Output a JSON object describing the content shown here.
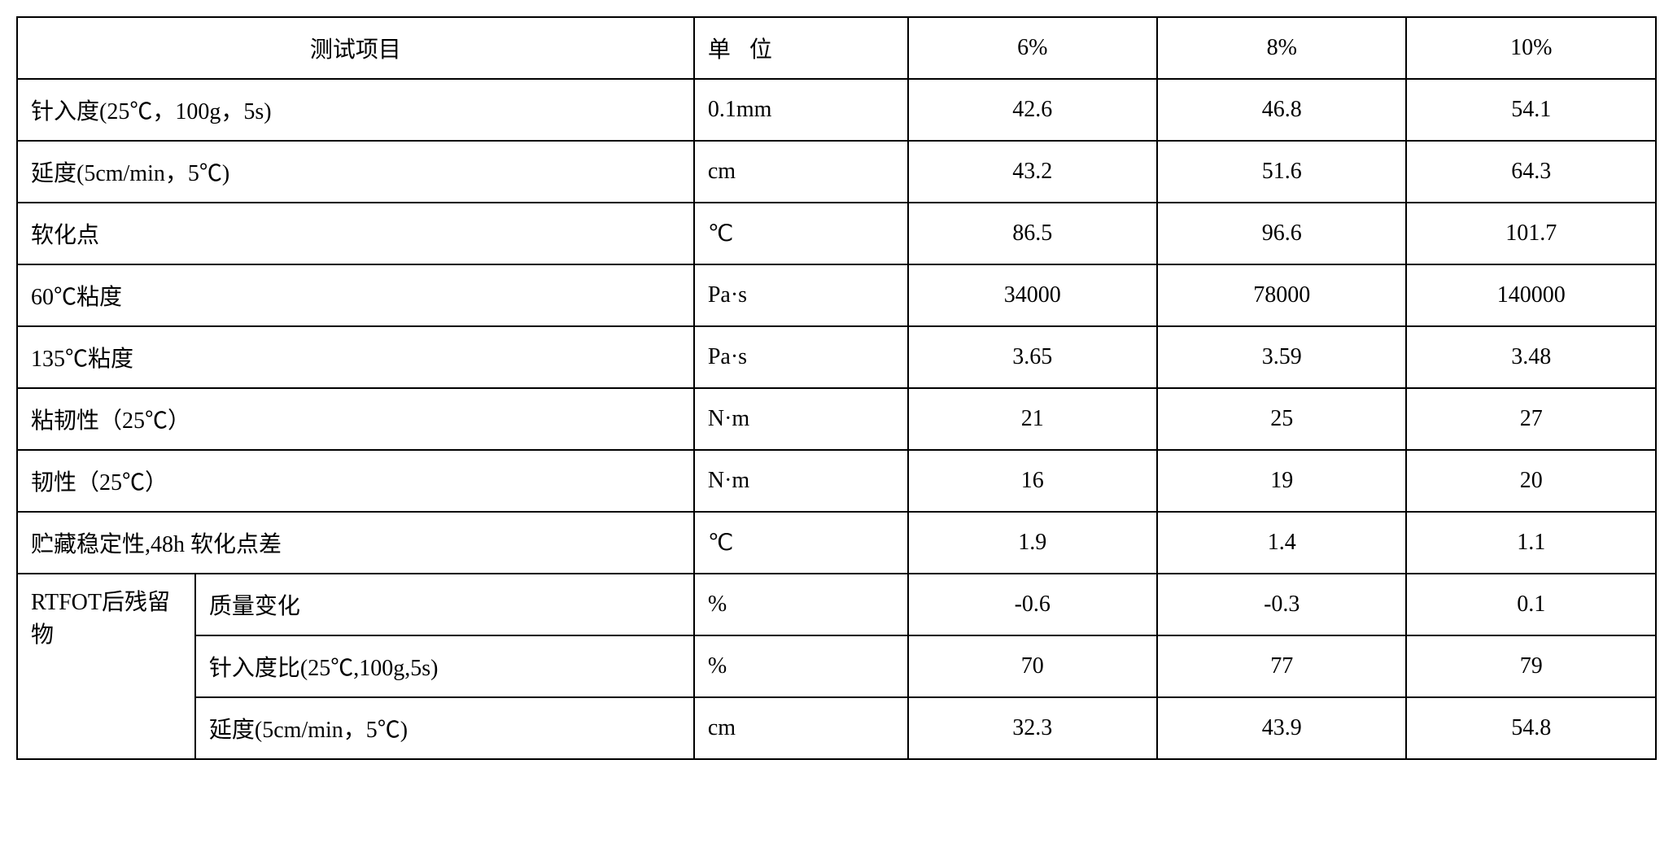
{
  "table": {
    "type": "table",
    "background_color": "#ffffff",
    "border_color": "#000000",
    "text_color": "#000000",
    "font_family": "SimSun",
    "cell_fontsize": 28,
    "border_width": 2,
    "columns": [
      "测试项目",
      "单 位",
      "6%",
      "8%",
      "10%"
    ],
    "header": {
      "test_item": "测试项目",
      "unit": "单 位",
      "pct6": "6%",
      "pct8": "8%",
      "pct10": "10%"
    },
    "rows": [
      {
        "label": "针入度(25℃，100g，5s)",
        "unit": "0.1mm",
        "v6": "42.6",
        "v8": "46.8",
        "v10": "54.1"
      },
      {
        "label": "延度(5cm/min，5℃)",
        "unit": "cm",
        "v6": "43.2",
        "v8": "51.6",
        "v10": "64.3"
      },
      {
        "label": "软化点",
        "unit": "℃",
        "v6": "86.5",
        "v8": "96.6",
        "v10": "101.7"
      },
      {
        "label": "60℃粘度",
        "unit": "Pa·s",
        "v6": "34000",
        "v8": "78000",
        "v10": "140000"
      },
      {
        "label": "135℃粘度",
        "unit": "Pa·s",
        "v6": "3.65",
        "v8": "3.59",
        "v10": "3.48"
      },
      {
        "label": "粘韧性（25℃）",
        "unit": "N·m",
        "v6": "21",
        "v8": "25",
        "v10": "27"
      },
      {
        "label": "韧性（25℃）",
        "unit": "N·m",
        "v6": "16",
        "v8": "19",
        "v10": "20"
      },
      {
        "label": "贮藏稳定性,48h 软化点差",
        "unit": "℃",
        "v6": "1.9",
        "v8": "1.4",
        "v10": "1.1"
      }
    ],
    "rtfot": {
      "group_label": "RTFOT后残留物",
      "subrows": [
        {
          "label": "质量变化",
          "unit": "%",
          "v6": "-0.6",
          "v8": "-0.3",
          "v10": "0.1"
        },
        {
          "label": "针入度比(25℃,100g,5s)",
          "unit": "%",
          "v6": "70",
          "v8": "77",
          "v10": "79"
        },
        {
          "label": "延度(5cm/min，5℃)",
          "unit": "cm",
          "v6": "32.3",
          "v8": "43.9",
          "v10": "54.8"
        }
      ]
    },
    "column_widths_pct": [
      38,
      12,
      14,
      14,
      14
    ],
    "alignment": {
      "label": "left",
      "unit": "left",
      "values": "center",
      "header_test": "center",
      "header_unit": "left",
      "header_values": "center"
    }
  }
}
